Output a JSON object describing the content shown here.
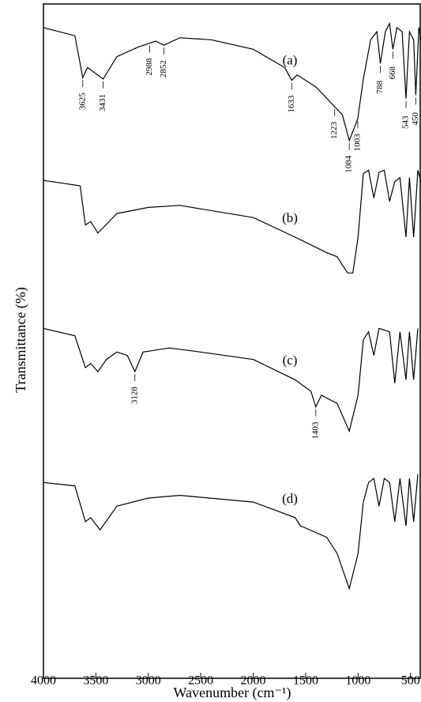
{
  "chart_data": {
    "type": "line",
    "xlabel": "Wavenumber (cm⁻¹)",
    "ylabel": "Transmittance (%)",
    "xlim": [
      4000,
      400
    ],
    "xticks": [
      4000,
      3500,
      3000,
      2500,
      2000,
      1500,
      1000,
      500
    ],
    "ylim": [
      0,
      100
    ],
    "series": [
      {
        "name": "(a)",
        "color": "#000000",
        "x": [
          4000,
          3700,
          3625,
          3580,
          3431,
          3300,
          3100,
          2988,
          2930,
          2852,
          2700,
          2400,
          2000,
          1700,
          1633,
          1580,
          1400,
          1223,
          1150,
          1084,
          1003,
          950,
          880,
          820,
          788,
          740,
          700,
          668,
          630,
          580,
          543,
          510,
          470,
          450,
          420,
          400
        ],
        "values": [
          96.5,
          95.3,
          89.1,
          90.6,
          88.9,
          92.2,
          93.6,
          94.2,
          94.5,
          93.9,
          95.0,
          94.7,
          93.3,
          90.6,
          88.7,
          89.5,
          87.7,
          84.8,
          83.6,
          79.8,
          83.0,
          88.9,
          94.7,
          95.9,
          91.2,
          95.9,
          97.1,
          93.3,
          96.5,
          95.9,
          86.0,
          95.9,
          94.7,
          86.5,
          96.5,
          94.7
        ],
        "peak_labels": [
          "3625",
          "3431",
          "2988",
          "2852",
          "1633",
          "1223",
          "1084",
          "1003",
          "788",
          "668",
          "543",
          "450"
        ]
      },
      {
        "name": "(b)",
        "color": "#000000",
        "x": [
          4000,
          3650,
          3600,
          3550,
          3480,
          3300,
          3000,
          2700,
          2000,
          1600,
          1300,
          1200,
          1100,
          1050,
          1000,
          950,
          900,
          850,
          800,
          750,
          700,
          650,
          600,
          543,
          510,
          470,
          430,
          400
        ],
        "values": [
          73.9,
          73.1,
          67.3,
          67.8,
          66.1,
          69.0,
          69.9,
          70.2,
          68.4,
          65.5,
          63.2,
          62.6,
          60.2,
          60.2,
          65.5,
          74.9,
          75.4,
          71.3,
          75.1,
          75.4,
          70.8,
          73.7,
          74.3,
          65.5,
          74.3,
          65.5,
          75.4,
          73.7
        ]
      },
      {
        "name": "(c)",
        "color": "#000000",
        "x": [
          4000,
          3700,
          3600,
          3550,
          3480,
          3400,
          3300,
          3200,
          3128,
          3050,
          2800,
          2500,
          2000,
          1600,
          1450,
          1403,
          1350,
          1200,
          1084,
          1000,
          950,
          900,
          850,
          800,
          700,
          650,
          600,
          543,
          510,
          470,
          430
        ],
        "values": [
          52.0,
          50.9,
          46.2,
          46.8,
          45.6,
          47.4,
          48.5,
          48.0,
          45.6,
          48.5,
          49.1,
          48.5,
          47.4,
          44.4,
          42.7,
          40.4,
          42.1,
          40.9,
          36.8,
          42.1,
          50.3,
          51.5,
          48.0,
          52.0,
          51.5,
          43.9,
          51.5,
          44.4,
          51.5,
          44.4,
          52.0
        ],
        "peak_labels": [
          "3128",
          "1403"
        ]
      },
      {
        "name": "(d)",
        "color": "#000000",
        "x": [
          4000,
          3700,
          3600,
          3550,
          3460,
          3300,
          3000,
          2700,
          2000,
          1600,
          1550,
          1300,
          1200,
          1084,
          1000,
          950,
          900,
          850,
          800,
          750,
          700,
          650,
          600,
          543,
          510,
          470,
          430
        ],
        "values": [
          29.2,
          28.7,
          23.4,
          24.0,
          22.2,
          25.7,
          26.9,
          27.3,
          26.3,
          24.0,
          22.8,
          21.1,
          18.7,
          13.5,
          18.7,
          26.3,
          29.2,
          29.8,
          25.7,
          29.8,
          29.2,
          23.4,
          29.8,
          22.8,
          29.8,
          23.4,
          30.4
        ]
      }
    ]
  }
}
